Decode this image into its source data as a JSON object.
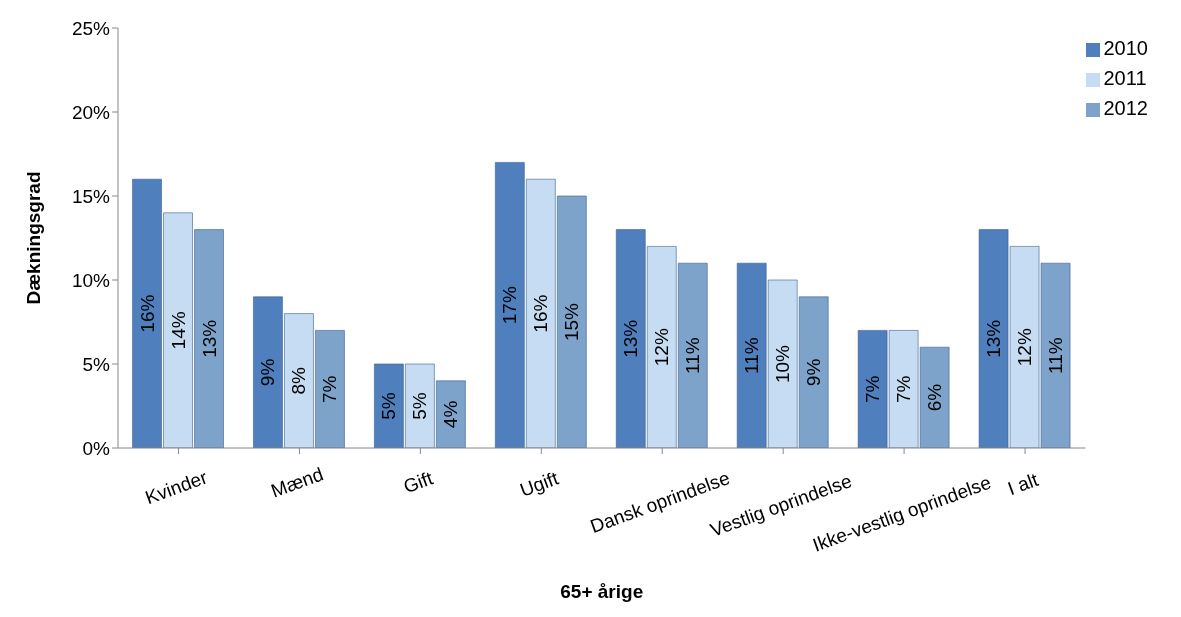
{
  "chart_data": {
    "type": "bar",
    "xlabel": "65+ årige",
    "ylabel": "Dækningsgrad",
    "categories": [
      "Kvinder",
      "Mænd",
      "Gift",
      "Ugift",
      "Dansk oprindelse",
      "Vestlig oprindelse",
      "Ikke-vestlig oprindelse",
      "I alt"
    ],
    "series": [
      {
        "name": "2010",
        "color": "#4f7fbd",
        "values": [
          16,
          9,
          5,
          17,
          13,
          11,
          7,
          13
        ],
        "value_labels": [
          "16%",
          "9%",
          "5%",
          "17%",
          "13%",
          "11%",
          "7%",
          "13%"
        ]
      },
      {
        "name": "2011",
        "color": "#c6dcf2",
        "values": [
          14,
          8,
          5,
          16,
          12,
          10,
          7,
          12
        ],
        "value_labels": [
          "14%",
          "8%",
          "5%",
          "16%",
          "12%",
          "10%",
          "7%",
          "12%"
        ]
      },
      {
        "name": "2012",
        "color": "#7ea3cb",
        "values": [
          13,
          7,
          4,
          15,
          11,
          9,
          6,
          11
        ],
        "value_labels": [
          "13%",
          "7%",
          "4%",
          "15%",
          "11%",
          "9%",
          "6%",
          "11%"
        ]
      }
    ],
    "ylim": [
      0,
      25
    ],
    "yticks": [
      {
        "value": 0,
        "label": "0%"
      },
      {
        "value": 5,
        "label": "5%"
      },
      {
        "value": 10,
        "label": "10%"
      },
      {
        "value": 15,
        "label": "15%"
      },
      {
        "value": 20,
        "label": "20%"
      },
      {
        "value": 25,
        "label": "25%"
      }
    ],
    "legend": "top right"
  }
}
